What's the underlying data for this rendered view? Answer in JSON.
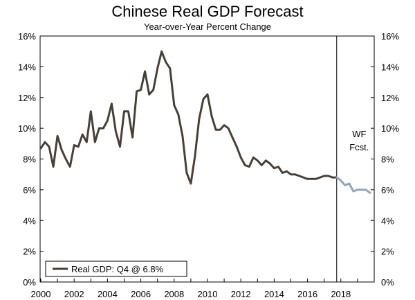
{
  "chart_data": {
    "type": "line",
    "title": "Chinese Real GDP Forecast",
    "subtitle": "Year-over-Year Percent Change",
    "xlabel": "",
    "ylabel": "",
    "xlim": [
      2000,
      2020
    ],
    "ylim": [
      0,
      16
    ],
    "x_ticks": [
      "2000",
      "2002",
      "2004",
      "2006",
      "2008",
      "2010",
      "2012",
      "2014",
      "2016",
      "2018"
    ],
    "y_ticks": [
      "0%",
      "2%",
      "4%",
      "6%",
      "8%",
      "10%",
      "12%",
      "14%",
      "16%"
    ],
    "grid": false,
    "legend": {
      "entries": [
        "Real GDP: Q4 @ 6.8%"
      ],
      "placement": "bottom-left"
    },
    "annotation": {
      "line1": "WF",
      "line2": "Fcst.",
      "divider_x": 2017.75
    },
    "colors": {
      "actual": "#4a3f36",
      "forecast": "#8fa3bf"
    },
    "series": [
      {
        "name": "Real GDP: Q4 @ 6.8%",
        "role": "actual",
        "points": [
          [
            2000.0,
            8.7
          ],
          [
            2000.25,
            9.1
          ],
          [
            2000.5,
            8.8
          ],
          [
            2000.75,
            7.5
          ],
          [
            2001.0,
            9.5
          ],
          [
            2001.25,
            8.6
          ],
          [
            2001.5,
            8.0
          ],
          [
            2001.75,
            7.5
          ],
          [
            2002.0,
            8.9
          ],
          [
            2002.25,
            8.8
          ],
          [
            2002.5,
            9.6
          ],
          [
            2002.75,
            9.1
          ],
          [
            2003.0,
            11.1
          ],
          [
            2003.25,
            9.1
          ],
          [
            2003.5,
            10.0
          ],
          [
            2003.75,
            10.0
          ],
          [
            2004.0,
            10.5
          ],
          [
            2004.25,
            11.6
          ],
          [
            2004.5,
            9.8
          ],
          [
            2004.75,
            8.8
          ],
          [
            2005.0,
            11.1
          ],
          [
            2005.25,
            11.1
          ],
          [
            2005.5,
            9.4
          ],
          [
            2005.75,
            12.4
          ],
          [
            2006.0,
            12.5
          ],
          [
            2006.25,
            13.7
          ],
          [
            2006.5,
            12.2
          ],
          [
            2006.75,
            12.5
          ],
          [
            2007.0,
            13.9
          ],
          [
            2007.25,
            15.0
          ],
          [
            2007.5,
            14.3
          ],
          [
            2007.75,
            13.9
          ],
          [
            2008.0,
            11.5
          ],
          [
            2008.25,
            10.9
          ],
          [
            2008.5,
            9.5
          ],
          [
            2008.75,
            7.1
          ],
          [
            2009.0,
            6.4
          ],
          [
            2009.25,
            8.2
          ],
          [
            2009.5,
            10.6
          ],
          [
            2009.75,
            11.9
          ],
          [
            2010.0,
            12.2
          ],
          [
            2010.25,
            10.8
          ],
          [
            2010.5,
            9.9
          ],
          [
            2010.75,
            9.9
          ],
          [
            2011.0,
            10.2
          ],
          [
            2011.25,
            10.0
          ],
          [
            2011.5,
            9.4
          ],
          [
            2011.75,
            8.8
          ],
          [
            2012.0,
            8.1
          ],
          [
            2012.25,
            7.6
          ],
          [
            2012.5,
            7.5
          ],
          [
            2012.75,
            8.1
          ],
          [
            2013.0,
            7.9
          ],
          [
            2013.25,
            7.6
          ],
          [
            2013.5,
            7.9
          ],
          [
            2013.75,
            7.7
          ],
          [
            2014.0,
            7.4
          ],
          [
            2014.25,
            7.5
          ],
          [
            2014.5,
            7.1
          ],
          [
            2014.75,
            7.2
          ],
          [
            2015.0,
            7.0
          ],
          [
            2015.25,
            7.0
          ],
          [
            2015.5,
            6.9
          ],
          [
            2015.75,
            6.8
          ],
          [
            2016.0,
            6.7
          ],
          [
            2016.25,
            6.7
          ],
          [
            2016.5,
            6.7
          ],
          [
            2016.75,
            6.8
          ],
          [
            2017.0,
            6.9
          ],
          [
            2017.25,
            6.9
          ],
          [
            2017.5,
            6.8
          ],
          [
            2017.75,
            6.8
          ]
        ]
      },
      {
        "name": "",
        "role": "forecast",
        "points": [
          [
            2017.75,
            6.8
          ],
          [
            2018.0,
            6.6
          ],
          [
            2018.25,
            6.3
          ],
          [
            2018.5,
            6.4
          ],
          [
            2018.75,
            5.9
          ],
          [
            2019.0,
            6.0
          ],
          [
            2019.25,
            6.0
          ],
          [
            2019.5,
            6.0
          ],
          [
            2019.75,
            5.8
          ]
        ]
      }
    ]
  }
}
